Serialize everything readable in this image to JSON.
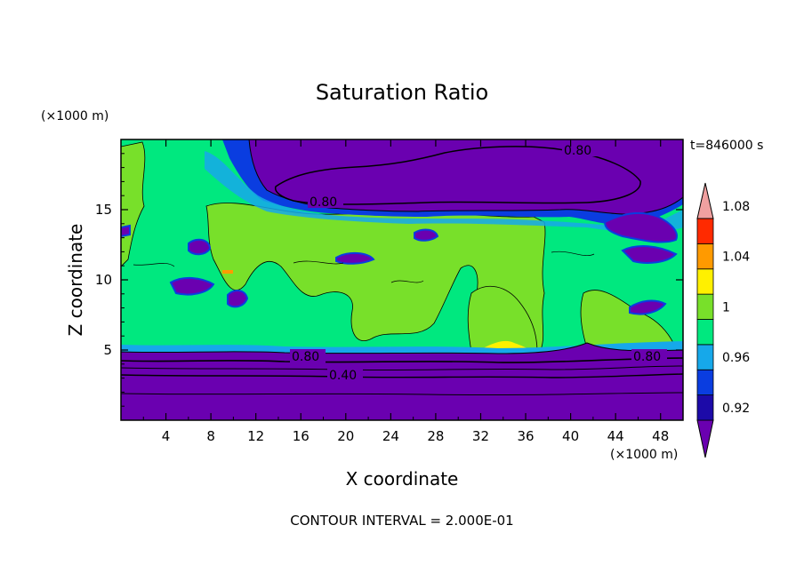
{
  "chart_data": {
    "type": "contour",
    "title": "Saturation Ratio",
    "xlabel": "X coordinate",
    "ylabel": "Z coordinate",
    "x_unit": "(×1000 m)",
    "y_unit": "(×1000 m)",
    "time_label": "t=846000 s",
    "footer": "CONTOUR INTERVAL = 2.000E-01",
    "xlim": [
      0,
      50
    ],
    "ylim": [
      0,
      20
    ],
    "x_ticks": [
      4,
      8,
      12,
      16,
      20,
      24,
      28,
      32,
      36,
      40,
      44,
      48
    ],
    "y_ticks": [
      5,
      10,
      15
    ],
    "contour_labels": [
      {
        "text": "0.80",
        "x": 41.5,
        "z": 19.0
      },
      {
        "text": "0.80",
        "x": 18.5,
        "z": 15.6
      },
      {
        "text": "0.80",
        "x": 17.0,
        "z": 4.5
      },
      {
        "text": "0.40",
        "x": 20.0,
        "z": 3.1
      },
      {
        "text": "0.80",
        "x": 47.0,
        "z": 4.5
      }
    ],
    "colorbar": {
      "levels": [
        0.92,
        0.94,
        0.96,
        0.98,
        1.0,
        1.02,
        1.04,
        1.06,
        1.08,
        1.1
      ],
      "tick_labels": [
        "0.92",
        "0.96",
        "1",
        "1.04",
        "1.08"
      ],
      "colors": [
        "#6a00b0",
        "#1c0aa8",
        "#0a3de0",
        "#16a8ea",
        "#00e87f",
        "#78e02a",
        "#fff000",
        "#ff9a00",
        "#ff2a00",
        "#f0a0a0"
      ]
    },
    "regions": {
      "lower_band_top_km": 5.0,
      "upper_dry_layer_km": [
        15.5,
        20.0
      ],
      "mid_field_value": 1.0
    }
  }
}
